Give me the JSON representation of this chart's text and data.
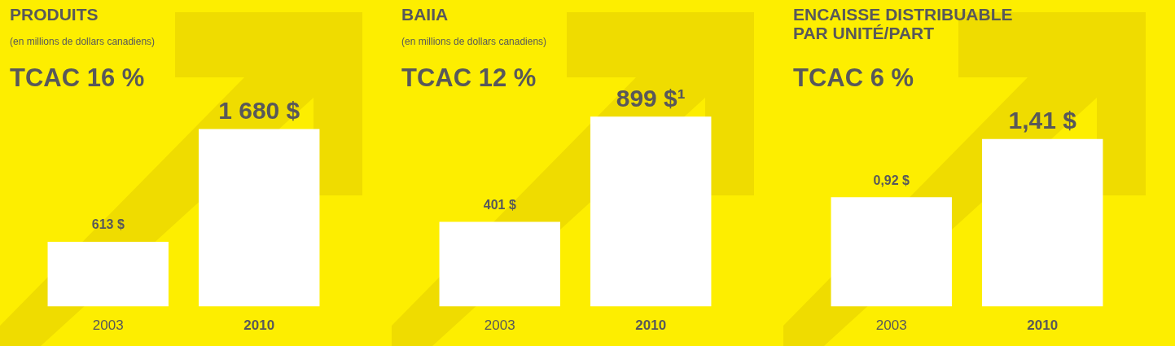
{
  "chart_data": [
    {
      "type": "bar",
      "title": "PRODUITS",
      "subtitle": "(en millions de dollars canadiens)",
      "annotations": [
        "TCAC 16 %"
      ],
      "categories": [
        "2003",
        "2010"
      ],
      "values": [
        613,
        1680
      ],
      "value_labels": [
        "613 $",
        "1 680 $"
      ],
      "color": "#ffffff",
      "tick_labels": "x",
      "grid": false
    },
    {
      "type": "bar",
      "title": "BAIIA",
      "subtitle": "(en millions de dollars canadiens)",
      "annotations": [
        "TCAC 12 %"
      ],
      "categories": [
        "2003",
        "2010"
      ],
      "values": [
        401,
        899
      ],
      "value_labels": [
        "401 $",
        "899 $¹"
      ],
      "color": "#ffffff",
      "tick_labels": "x",
      "grid": false
    },
    {
      "type": "bar",
      "title": "ENCAISSE DISTRIBUABLE PAR UNITÉ/PART",
      "annotations": [
        "TCAC 6 %"
      ],
      "categories": [
        "2003",
        "2010"
      ],
      "values": [
        0.92,
        1.41
      ],
      "value_labels": [
        "0,92 $",
        "1,41 $"
      ],
      "color": "#ffffff",
      "tick_labels": "x",
      "grid": false
    }
  ]
}
